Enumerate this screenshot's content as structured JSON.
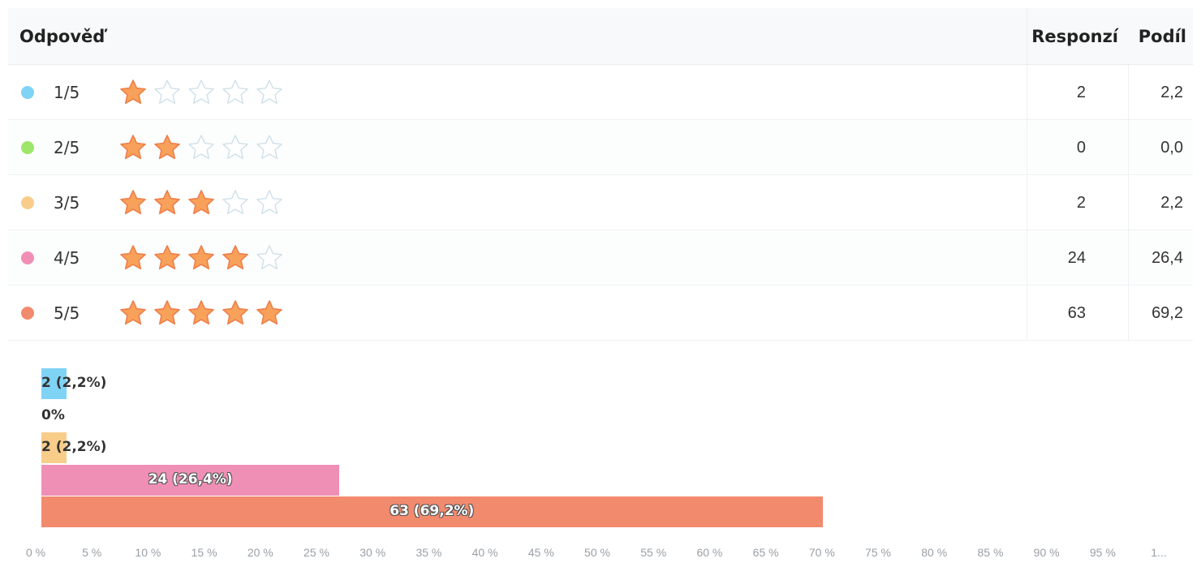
{
  "table": {
    "headers": {
      "answer": "Odpověď",
      "count": "Responzí",
      "share": "Podíl"
    },
    "rows": [
      {
        "label": "1/5",
        "stars": 1,
        "count": "2",
        "share": "2,2",
        "color": "#7fd3f5"
      },
      {
        "label": "2/5",
        "stars": 2,
        "count": "0",
        "share": "0,0",
        "color": "#9de66a"
      },
      {
        "label": "3/5",
        "stars": 3,
        "count": "2",
        "share": "2,2",
        "color": "#f8cd8a"
      },
      {
        "label": "4/5",
        "stars": 4,
        "count": "24",
        "share": "26,4",
        "color": "#f08fb6"
      },
      {
        "label": "5/5",
        "stars": 5,
        "count": "63",
        "share": "69,2",
        "color": "#f28a6e"
      }
    ],
    "star_filled_color": "#f8a15a",
    "star_empty_color": "#cfe0e8"
  },
  "chart_data": {
    "type": "bar",
    "orientation": "horizontal",
    "categories": [
      "1/5",
      "2/5",
      "3/5",
      "4/5",
      "5/5"
    ],
    "values": [
      2.2,
      0,
      2.2,
      26.4,
      69.2
    ],
    "counts": [
      2,
      0,
      2,
      24,
      63
    ],
    "bar_labels": [
      "2 (2,2%)",
      "0%",
      "2 (2,2%)",
      "24 (26,4%)",
      "63 (69,2%)"
    ],
    "colors": [
      "#7fd3f5",
      "#9de66a",
      "#f8cd8a",
      "#f08fb6",
      "#f28a6e"
    ],
    "xlim": [
      0,
      100
    ],
    "x_ticks": [
      "0 %",
      "5 %",
      "10 %",
      "15 %",
      "20 %",
      "25 %",
      "30 %",
      "35 %",
      "40 %",
      "45 %",
      "50 %",
      "55 %",
      "60 %",
      "65 %",
      "70 %",
      "75 %",
      "80 %",
      "85 %",
      "90 %",
      "95 %",
      "1..."
    ],
    "title": "",
    "xlabel": "",
    "ylabel": "",
    "grid": false,
    "legend": "none"
  }
}
